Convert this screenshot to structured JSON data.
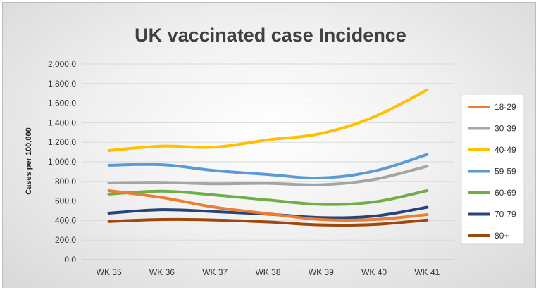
{
  "chart_data": {
    "type": "line",
    "title": "UK vaccinated case Incidence",
    "xlabel": "",
    "ylabel": "Cases per 100,000",
    "ylim": [
      0,
      2000
    ],
    "yticks": [
      "0.0",
      "200.0",
      "400.0",
      "600.0",
      "800.0",
      "1,000.0",
      "1,200.0",
      "1,400.0",
      "1,600.0",
      "1,800.0",
      "2,000.0"
    ],
    "categories": [
      "WK 35",
      "WK 36",
      "WK 37",
      "WK 38",
      "WK 39",
      "WK 40",
      "WK 41"
    ],
    "grid": true,
    "legend_position": "right",
    "series": [
      {
        "name": "18-29",
        "color": "#ED7D31",
        "values": [
          705,
          635,
          535,
          470,
          410,
          410,
          460
        ]
      },
      {
        "name": "30-39",
        "color": "#A5A5A5",
        "values": [
          785,
          790,
          775,
          780,
          765,
          820,
          955
        ]
      },
      {
        "name": "40-49",
        "color": "#FFC000",
        "values": [
          1115,
          1160,
          1150,
          1225,
          1290,
          1460,
          1735
        ]
      },
      {
        "name": "59-59",
        "color": "#5B9BD5",
        "values": [
          965,
          970,
          910,
          870,
          835,
          905,
          1075
        ]
      },
      {
        "name": "60-69",
        "color": "#70AD47",
        "values": [
          670,
          700,
          660,
          610,
          565,
          590,
          705
        ]
      },
      {
        "name": "70-79",
        "color": "#264478",
        "values": [
          475,
          510,
          490,
          465,
          430,
          445,
          535
        ]
      },
      {
        "name": "80+",
        "color": "#9E480E",
        "values": [
          390,
          410,
          405,
          385,
          355,
          360,
          405
        ]
      }
    ]
  }
}
